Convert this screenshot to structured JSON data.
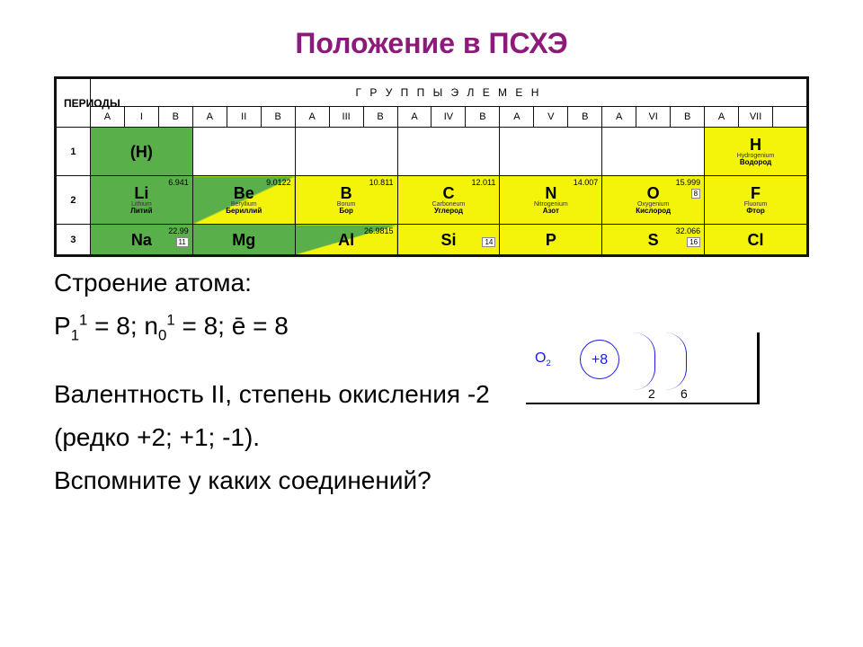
{
  "title": {
    "text": "Положение в ПСХЭ",
    "color": "#8b1a7a"
  },
  "table": {
    "periods_label": "ПЕРИОДЫ",
    "groups_label": "Г Р У П П Ы   Э Л Е М Е Н",
    "ab_labels": [
      "A",
      "I",
      "B",
      "A",
      "II",
      "B",
      "A",
      "III",
      "B",
      "A",
      "IV",
      "B",
      "A",
      "V",
      "B",
      "A",
      "VI",
      "B",
      "A",
      "VII"
    ],
    "period_numbers": [
      "1",
      "2",
      "3"
    ],
    "row1": [
      {
        "symbol": "(H)",
        "bg": "green",
        "mass": "",
        "num": "",
        "lat": "",
        "ru": ""
      },
      null,
      null,
      null,
      null,
      null,
      {
        "symbol": "H",
        "bg": "yellow",
        "mass": "",
        "num": "",
        "lat": "Hydrogenium",
        "ru": "Водород"
      }
    ],
    "row2": [
      {
        "symbol": "Li",
        "bg": "green",
        "mass": "6.941",
        "num": "",
        "lat": "Lithium",
        "ru": "Литий"
      },
      {
        "symbol": "Be",
        "bg": "gy",
        "mass": "9.0122",
        "num": "",
        "lat": "Beryllium",
        "ru": "Бериллий"
      },
      {
        "symbol": "B",
        "bg": "yellow",
        "mass": "10.811",
        "num": "",
        "lat": "Borum",
        "ru": "Бор"
      },
      {
        "symbol": "C",
        "bg": "yellow",
        "mass": "12.011",
        "num": "",
        "lat": "Carboneum",
        "ru": "Углерод"
      },
      {
        "symbol": "N",
        "bg": "yellow",
        "mass": "14.007",
        "num": "",
        "lat": "Nitrogenium",
        "ru": "Азот"
      },
      {
        "symbol": "O",
        "bg": "yellow",
        "mass": "15.999",
        "num": "8",
        "lat": "Oxygenium",
        "ru": "Кислород"
      },
      {
        "symbol": "F",
        "bg": "yellow",
        "mass": "",
        "num": "",
        "lat": "Fluorum",
        "ru": "Фтор"
      }
    ],
    "row3": [
      {
        "symbol": "Na",
        "bg": "green",
        "mass": "22.99",
        "num": "11",
        "lat": "",
        "ru": ""
      },
      {
        "symbol": "Mg",
        "bg": "green",
        "mass": "",
        "num": "",
        "lat": "",
        "ru": ""
      },
      {
        "symbol": "Al",
        "bg": "gy",
        "mass": "26.9815",
        "num": "",
        "lat": "",
        "ru": ""
      },
      {
        "symbol": "Si",
        "bg": "yellow",
        "mass": "",
        "num": "14",
        "lat": "",
        "ru": ""
      },
      {
        "symbol": "P",
        "bg": "yellow",
        "mass": "",
        "num": "",
        "lat": "",
        "ru": ""
      },
      {
        "symbol": "S",
        "bg": "yellow",
        "mass": "32.066",
        "num": "16",
        "lat": "",
        "ru": ""
      },
      {
        "symbol": "Cl",
        "bg": "yellow",
        "mass": "",
        "num": "",
        "lat": "",
        "ru": ""
      }
    ]
  },
  "atom": {
    "heading": "Строение атома:",
    "formula_p_prefix": "P",
    "formula_p_sub": "1",
    "formula_p_sup": "1",
    "formula_p_val": " = 8; ",
    "formula_n_prefix": "n",
    "formula_n_sub": "0",
    "formula_n_sup": "1",
    "formula_n_val": " = 8; ",
    "formula_e": "ē = 8",
    "o2_label": "O",
    "o2_sub": "2",
    "nucleus": "+8",
    "shell1": "2",
    "shell2": "6"
  },
  "text": {
    "line1": "Валентность II, степень окисления -2",
    "line2": "(редко +2; +1; -1).",
    "line3": "Вспомните у каких соединений?"
  },
  "colors": {
    "title": "#8b1a7a",
    "green": "#59b04a",
    "yellow": "#f4f40a",
    "blue": "#1a1af0"
  }
}
